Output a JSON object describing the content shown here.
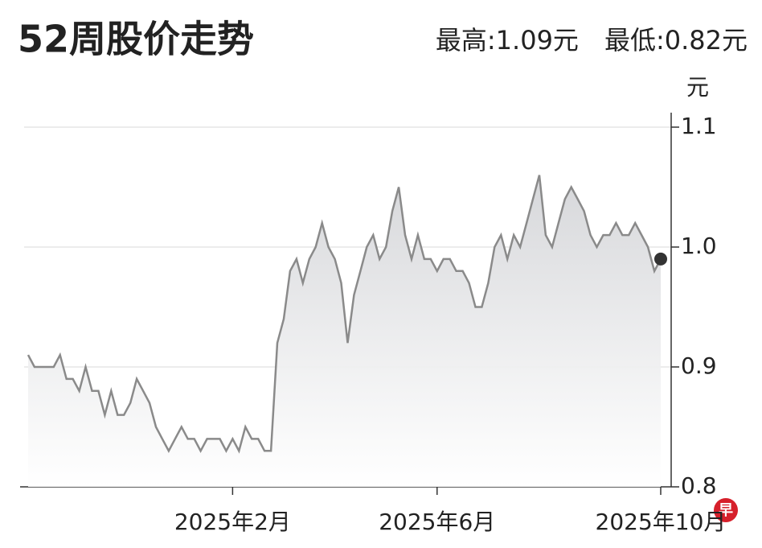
{
  "chart_data": {
    "type": "line",
    "title": "52周股价走势",
    "stats": [
      {
        "label": "最高:",
        "value": 1.09,
        "unit": "元"
      },
      {
        "label": "最低:",
        "value": 0.82,
        "unit": "元"
      }
    ],
    "y_label": "元",
    "logo": "早",
    "categories": [
      null,
      null,
      null,
      null,
      null,
      null,
      null,
      null,
      null,
      null,
      null,
      null,
      null,
      null,
      null,
      null,
      null,
      null,
      null,
      null,
      null,
      null,
      null,
      null,
      null,
      null,
      null,
      null,
      null,
      null,
      null,
      null,
      "2025年2月",
      null,
      null,
      null,
      null,
      null,
      null,
      null,
      null,
      null,
      null,
      null,
      null,
      null,
      null,
      null,
      null,
      null,
      null,
      null,
      null,
      null,
      null,
      null,
      null,
      null,
      null,
      null,
      null,
      null,
      null,
      null,
      "2025年6月",
      null,
      null,
      null,
      null,
      null,
      null,
      null,
      null,
      null,
      null,
      null,
      null,
      null,
      null,
      null,
      null,
      null,
      null,
      null,
      null,
      null,
      null,
      null,
      null,
      null,
      null,
      null,
      null,
      null,
      null,
      null,
      null,
      null,
      null,
      "2025年10月"
    ],
    "series": [
      {
        "name": null,
        "color": "#8a8a8a",
        "values": [
          0.91,
          0.9,
          0.9,
          0.9,
          0.9,
          0.91,
          0.89,
          0.89,
          0.88,
          0.9,
          0.88,
          0.88,
          0.86,
          0.88,
          0.86,
          0.86,
          0.87,
          0.89,
          0.88,
          0.87,
          0.85,
          0.84,
          0.83,
          0.84,
          0.85,
          0.84,
          0.84,
          0.83,
          0.84,
          0.84,
          0.84,
          0.83,
          0.84,
          0.83,
          0.85,
          0.84,
          0.84,
          0.83,
          0.83,
          0.92,
          0.94,
          0.98,
          0.99,
          0.97,
          0.99,
          1.0,
          1.02,
          1.0,
          0.99,
          0.97,
          0.92,
          0.96,
          0.98,
          1.0,
          1.01,
          0.99,
          1.0,
          1.03,
          1.05,
          1.01,
          0.99,
          1.01,
          0.99,
          0.99,
          0.98,
          0.99,
          0.99,
          0.98,
          0.98,
          0.97,
          0.95,
          0.95,
          0.97,
          1.0,
          1.01,
          0.99,
          1.01,
          1.0,
          1.02,
          1.04,
          1.06,
          1.01,
          1.0,
          1.02,
          1.04,
          1.05,
          1.04,
          1.03,
          1.01,
          1.0,
          1.01,
          1.01,
          1.02,
          1.01,
          1.01,
          1.02,
          1.01,
          1.0,
          0.98,
          0.99
        ]
      }
    ],
    "ylim": [
      0.8,
      1.1
    ],
    "yticks": [
      0.8,
      0.9,
      {
        "value": 1,
        "label": "1.0"
      },
      1.1
    ],
    "grid": true
  }
}
